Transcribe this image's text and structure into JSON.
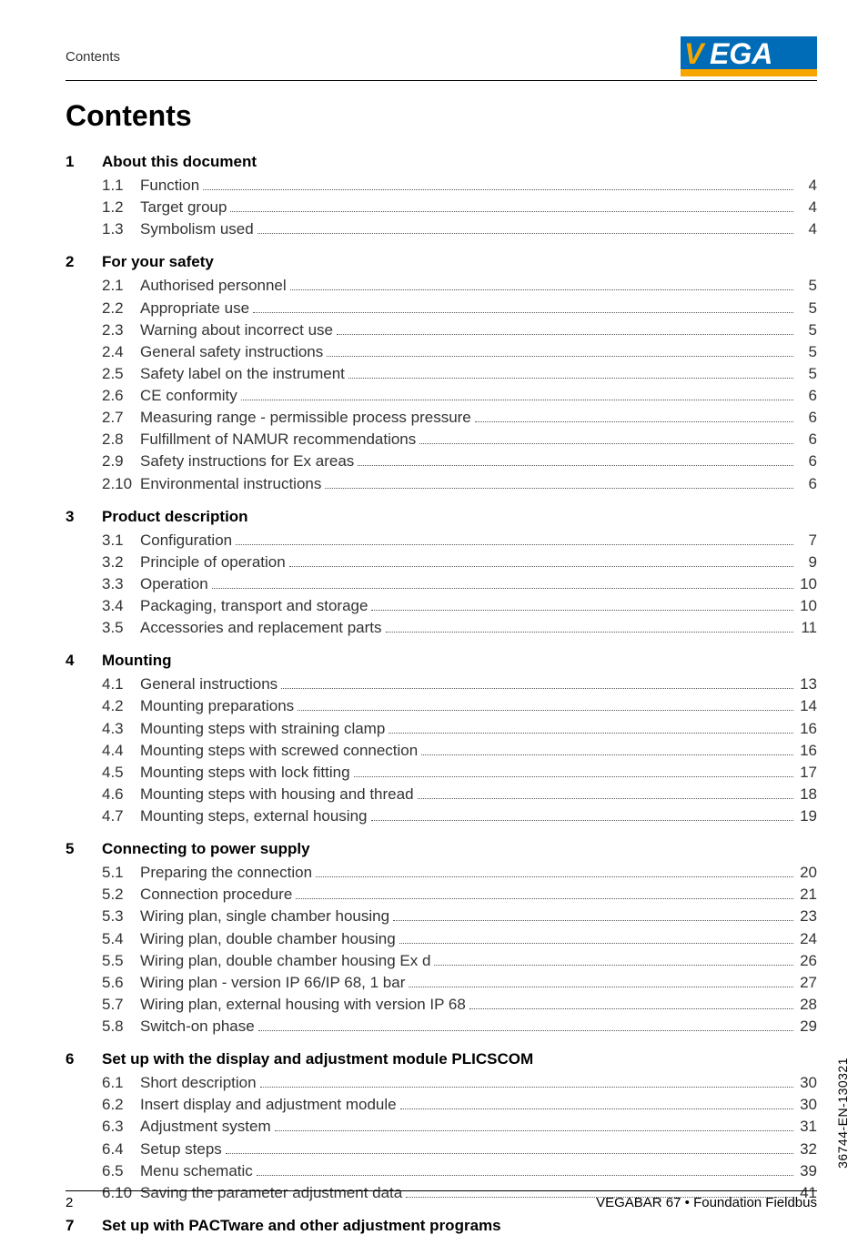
{
  "header": {
    "section_label": "Contents"
  },
  "logo": {
    "text": "VEGA",
    "bar_color": "#f7a600",
    "bg_color": "#006bb6",
    "v_color": "#f7a600",
    "ega_color": "#ffffff"
  },
  "title": "Contents",
  "sections": [
    {
      "num": "1",
      "title": "About this document",
      "items": [
        {
          "num": "1.1",
          "label": "Function",
          "page": "4"
        },
        {
          "num": "1.2",
          "label": "Target group",
          "page": "4"
        },
        {
          "num": "1.3",
          "label": "Symbolism used",
          "page": "4"
        }
      ]
    },
    {
      "num": "2",
      "title": "For your safety",
      "items": [
        {
          "num": "2.1",
          "label": "Authorised personnel",
          "page": "5"
        },
        {
          "num": "2.2",
          "label": "Appropriate use",
          "page": "5"
        },
        {
          "num": "2.3",
          "label": "Warning about incorrect use",
          "page": "5"
        },
        {
          "num": "2.4",
          "label": "General safety instructions",
          "page": "5"
        },
        {
          "num": "2.5",
          "label": "Safety label on the instrument",
          "page": "5"
        },
        {
          "num": "2.6",
          "label": "CE conformity",
          "page": "6"
        },
        {
          "num": "2.7",
          "label": "Measuring range - permissible process pressure",
          "page": "6"
        },
        {
          "num": "2.8",
          "label": "Fulfillment of NAMUR recommendations",
          "page": "6"
        },
        {
          "num": "2.9",
          "label": "Safety instructions for Ex areas",
          "page": "6"
        },
        {
          "num": "2.10",
          "label": "Environmental instructions",
          "page": "6"
        }
      ]
    },
    {
      "num": "3",
      "title": "Product description",
      "items": [
        {
          "num": "3.1",
          "label": "Configuration",
          "page": "7"
        },
        {
          "num": "3.2",
          "label": "Principle of operation",
          "page": "9"
        },
        {
          "num": "3.3",
          "label": "Operation",
          "page": "10"
        },
        {
          "num": "3.4",
          "label": "Packaging, transport and storage",
          "page": "10"
        },
        {
          "num": "3.5",
          "label": "Accessories and replacement parts",
          "page": "11"
        }
      ]
    },
    {
      "num": "4",
      "title": "Mounting",
      "items": [
        {
          "num": "4.1",
          "label": "General instructions",
          "page": "13"
        },
        {
          "num": "4.2",
          "label": "Mounting preparations",
          "page": "14"
        },
        {
          "num": "4.3",
          "label": "Mounting steps with straining clamp",
          "page": "16"
        },
        {
          "num": "4.4",
          "label": "Mounting steps with screwed connection",
          "page": "16"
        },
        {
          "num": "4.5",
          "label": "Mounting steps with lock fitting",
          "page": "17"
        },
        {
          "num": "4.6",
          "label": "Mounting steps with housing and thread",
          "page": "18"
        },
        {
          "num": "4.7",
          "label": "Mounting steps, external housing",
          "page": "19"
        }
      ]
    },
    {
      "num": "5",
      "title": "Connecting to power supply",
      "items": [
        {
          "num": "5.1",
          "label": "Preparing the connection",
          "page": "20"
        },
        {
          "num": "5.2",
          "label": "Connection procedure",
          "page": "21"
        },
        {
          "num": "5.3",
          "label": "Wiring plan, single chamber housing",
          "page": "23"
        },
        {
          "num": "5.4",
          "label": "Wiring plan, double chamber housing",
          "page": "24"
        },
        {
          "num": "5.5",
          "label": "Wiring plan, double chamber housing Ex d",
          "page": "26"
        },
        {
          "num": "5.6",
          "label": "Wiring plan - version IP 66/IP 68, 1 bar",
          "page": "27"
        },
        {
          "num": "5.7",
          "label": "Wiring plan, external housing with version IP 68",
          "page": "28"
        },
        {
          "num": "5.8",
          "label": "Switch-on phase",
          "page": "29"
        }
      ]
    },
    {
      "num": "6",
      "title": "Set up with the display and adjustment module PLICSCOM",
      "items": [
        {
          "num": "6.1",
          "label": "Short description",
          "page": "30"
        },
        {
          "num": "6.2",
          "label": "Insert display and adjustment module",
          "page": "30"
        },
        {
          "num": "6.3",
          "label": "Adjustment system",
          "page": "31"
        },
        {
          "num": "6.4",
          "label": "Setup steps",
          "page": "32"
        },
        {
          "num": "6.5",
          "label": "Menu schematic",
          "page": "39"
        },
        {
          "num": "6.10",
          "label": "Saving the parameter adjustment data",
          "page": "41"
        }
      ]
    },
    {
      "num": "7",
      "title": "Set up with PACTware and other adjustment programs",
      "items": []
    }
  ],
  "footer": {
    "page_number": "2",
    "doc_title": "VEGABAR 67 • Foundation Fieldbus"
  },
  "side_code": "36744-EN-130321"
}
